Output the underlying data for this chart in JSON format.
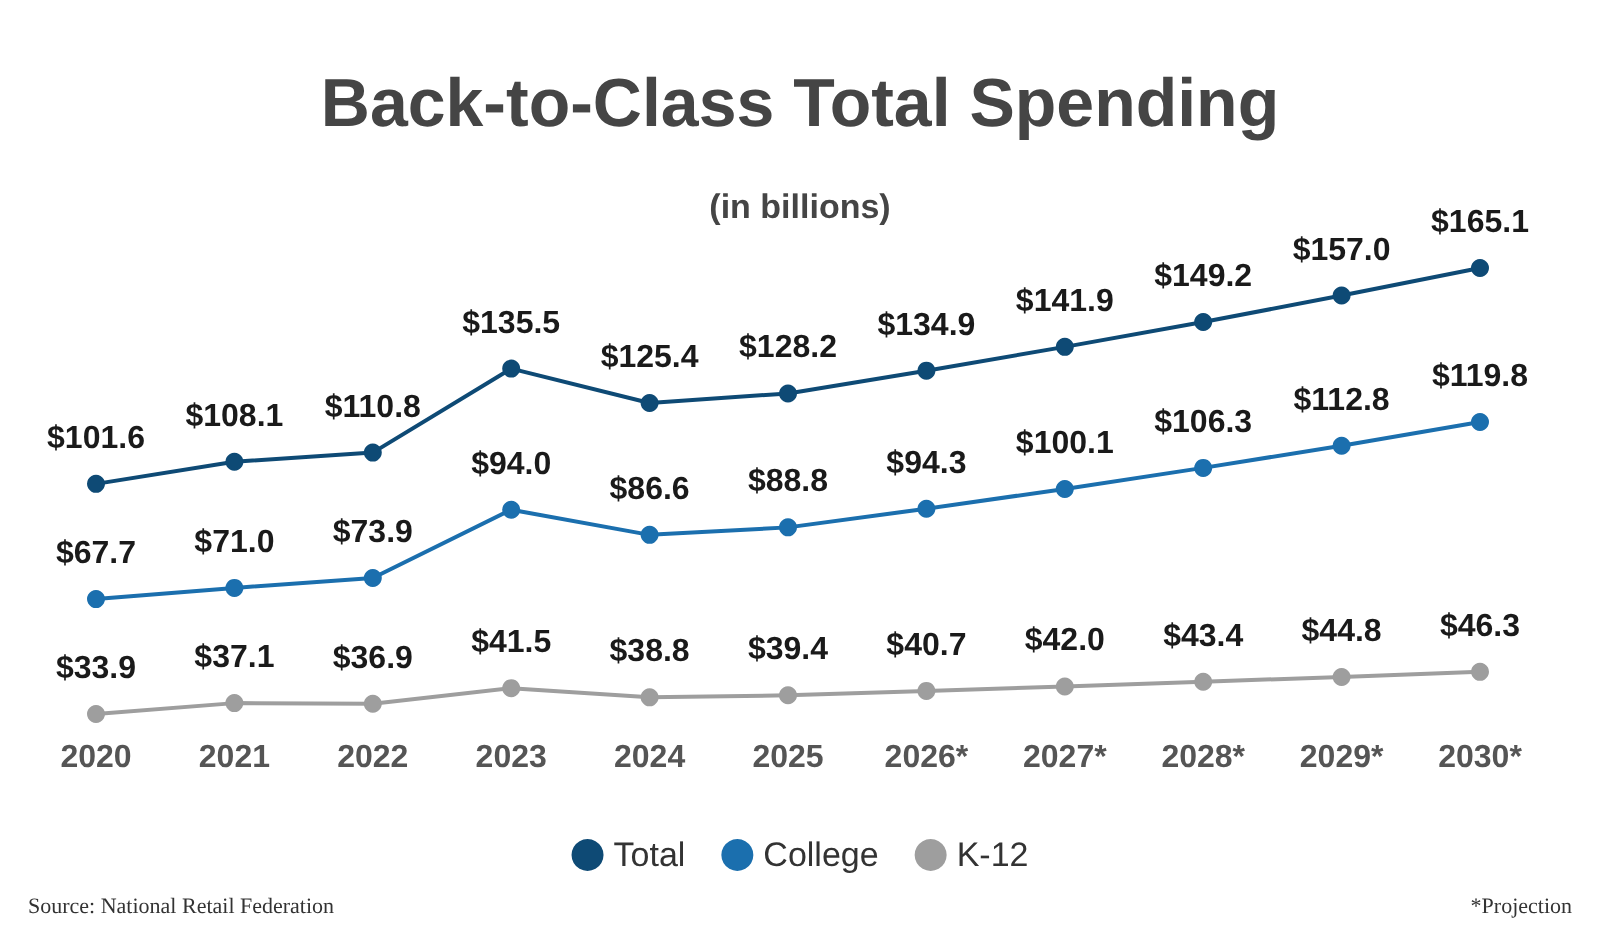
{
  "chart_data": {
    "type": "line",
    "title": "Back-to-Class Total Spending",
    "subtitle": "(in billions)",
    "categories": [
      "2020",
      "2021",
      "2022",
      "2023",
      "2024",
      "2025",
      "2026*",
      "2027*",
      "2028*",
      "2029*",
      "2030*"
    ],
    "series": [
      {
        "name": "Total",
        "color": "#0e4a75",
        "values": [
          101.6,
          108.1,
          110.8,
          135.5,
          125.4,
          128.2,
          134.9,
          141.9,
          149.2,
          157.0,
          165.1
        ],
        "value_labels": [
          "$101.6",
          "$108.1",
          "$110.8",
          "$135.5",
          "$125.4",
          "$128.2",
          "$134.9",
          "$141.9",
          "$149.2",
          "$157.0",
          "$165.1"
        ]
      },
      {
        "name": "College",
        "color": "#1b6fae",
        "values": [
          67.7,
          71.0,
          73.9,
          94.0,
          86.6,
          88.8,
          94.3,
          100.1,
          106.3,
          112.8,
          119.8
        ],
        "value_labels": [
          "$67.7",
          "$71.0",
          "$73.9",
          "$94.0",
          "$86.6",
          "$88.8",
          "$94.3",
          "$100.1",
          "$106.3",
          "$112.8",
          "$119.8"
        ]
      },
      {
        "name": "K-12",
        "color": "#9e9e9e",
        "values": [
          33.9,
          37.1,
          36.9,
          41.5,
          38.8,
          39.4,
          40.7,
          42.0,
          43.4,
          44.8,
          46.3
        ],
        "value_labels": [
          "$33.9",
          "$37.1",
          "$36.9",
          "$41.5",
          "$38.8",
          "$39.4",
          "$40.7",
          "$42.0",
          "$43.4",
          "$44.8",
          "$46.3"
        ]
      }
    ],
    "legend": "bottom",
    "marker": "circle",
    "line_style": "solid",
    "grid": false,
    "annotations": [
      "Source: National Retail Federation",
      "*Projection"
    ]
  }
}
